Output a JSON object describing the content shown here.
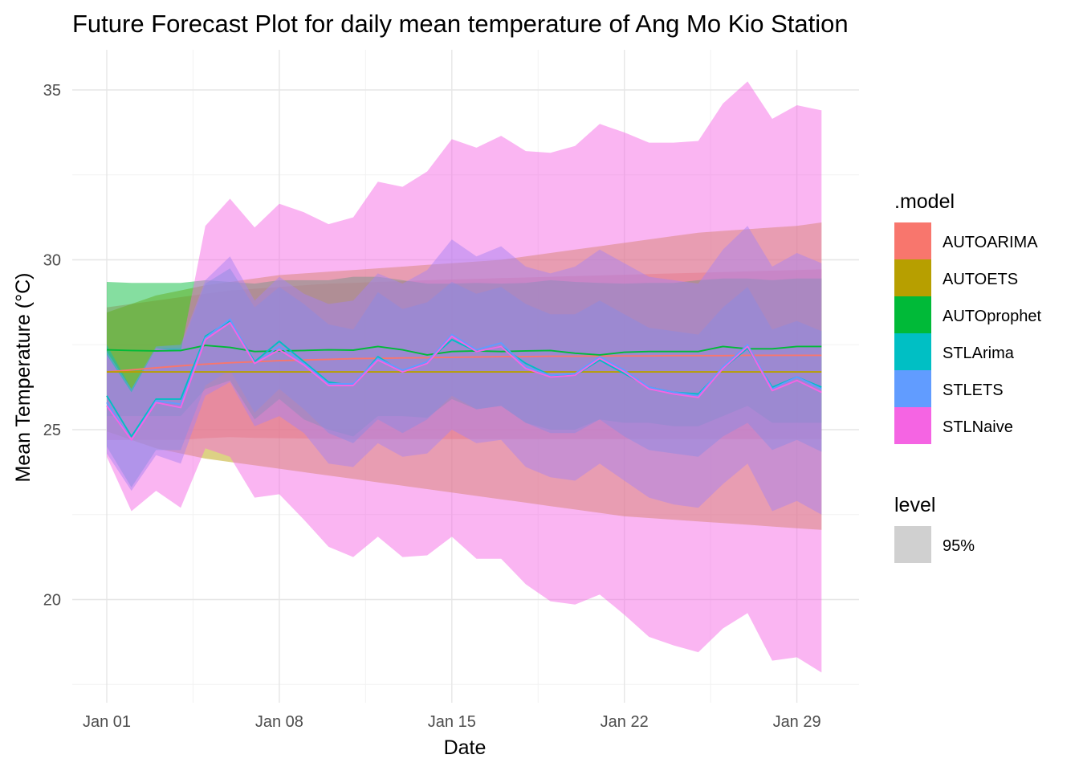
{
  "chart_data": {
    "type": "line",
    "title": "Future Forecast Plot for daily mean temperature of Ang Mo Kio Station",
    "xlabel": "Date",
    "ylabel": "Mean Temperature (°C)",
    "x": [
      "Jan 01",
      "Jan 02",
      "Jan 03",
      "Jan 04",
      "Jan 05",
      "Jan 06",
      "Jan 07",
      "Jan 08",
      "Jan 09",
      "Jan 10",
      "Jan 11",
      "Jan 12",
      "Jan 13",
      "Jan 14",
      "Jan 15",
      "Jan 16",
      "Jan 17",
      "Jan 18",
      "Jan 19",
      "Jan 20",
      "Jan 21",
      "Jan 22",
      "Jan 23",
      "Jan 24",
      "Jan 25",
      "Jan 26",
      "Jan 27",
      "Jan 28",
      "Jan 29",
      "Jan 30"
    ],
    "x_ticks": [
      "Jan 01",
      "Jan 08",
      "Jan 15",
      "Jan 22",
      "Jan 29"
    ],
    "y_ticks": [
      20,
      25,
      30,
      35
    ],
    "ylim": [
      17.5,
      36.5
    ],
    "grid": true,
    "legend_position": "right",
    "legend_model_title": ".model",
    "legend_level_title": "level",
    "level_label": "95%",
    "level_swatch_color": "#d0d0d0",
    "series": [
      {
        "name": "AUTOARIMA",
        "color": "#F8766D",
        "mean": [
          26.7,
          26.76,
          26.82,
          26.88,
          26.93,
          26.97,
          27.0,
          27.03,
          27.05,
          27.07,
          27.09,
          27.1,
          27.11,
          27.12,
          27.13,
          27.14,
          27.15,
          27.15,
          27.16,
          27.16,
          27.17,
          27.17,
          27.17,
          27.18,
          27.18,
          27.18,
          27.19,
          27.19,
          27.19,
          27.19
        ],
        "lower": [
          24.7,
          24.7,
          24.7,
          24.7,
          24.75,
          24.78,
          24.76,
          24.75,
          24.74,
          24.73,
          24.72,
          24.72,
          24.72,
          24.72,
          24.72,
          24.72,
          24.72,
          24.72,
          24.72,
          24.72,
          24.72,
          24.72,
          24.72,
          24.72,
          24.72,
          24.72,
          24.72,
          24.72,
          24.72,
          24.72
        ],
        "upper": [
          28.6,
          28.7,
          28.8,
          28.9,
          29.0,
          29.1,
          29.15,
          29.2,
          29.25,
          29.3,
          29.32,
          29.35,
          29.37,
          29.4,
          29.42,
          29.44,
          29.46,
          29.48,
          29.5,
          29.52,
          29.54,
          29.56,
          29.58,
          29.6,
          29.62,
          29.64,
          29.66,
          29.68,
          29.7,
          29.72
        ]
      },
      {
        "name": "AUTOETS",
        "color": "#B79F00",
        "mean": [
          26.7,
          26.7,
          26.7,
          26.7,
          26.7,
          26.7,
          26.7,
          26.7,
          26.7,
          26.7,
          26.7,
          26.7,
          26.7,
          26.7,
          26.7,
          26.7,
          26.7,
          26.7,
          26.7,
          26.7,
          26.7,
          26.7,
          26.7,
          26.7,
          26.7,
          26.7,
          26.7,
          26.7,
          26.7,
          26.7
        ],
        "lower": [
          24.95,
          24.7,
          24.45,
          24.3,
          24.15,
          24.05,
          23.95,
          23.85,
          23.75,
          23.65,
          23.55,
          23.45,
          23.35,
          23.25,
          23.15,
          23.05,
          22.95,
          22.85,
          22.75,
          22.65,
          22.55,
          22.45,
          22.4,
          22.35,
          22.3,
          22.25,
          22.2,
          22.15,
          22.1,
          22.05
        ],
        "upper": [
          28.45,
          28.7,
          28.95,
          29.1,
          29.25,
          29.35,
          29.45,
          29.55,
          29.6,
          29.65,
          29.7,
          29.75,
          29.8,
          29.85,
          29.9,
          29.95,
          30.0,
          30.1,
          30.2,
          30.3,
          30.4,
          30.5,
          30.6,
          30.7,
          30.8,
          30.85,
          30.9,
          30.95,
          31.0,
          31.1
        ]
      },
      {
        "name": "AUTOprophet",
        "color": "#00BA38",
        "mean": [
          27.35,
          27.33,
          27.32,
          27.33,
          27.48,
          27.42,
          27.3,
          27.32,
          27.33,
          27.35,
          27.34,
          27.45,
          27.35,
          27.2,
          27.3,
          27.32,
          27.3,
          27.32,
          27.33,
          27.25,
          27.2,
          27.28,
          27.3,
          27.3,
          27.3,
          27.45,
          27.38,
          27.38,
          27.45,
          27.45
        ],
        "lower": [
          25.4,
          25.4,
          25.4,
          25.4,
          26.2,
          26.45,
          25.3,
          25.9,
          25.3,
          25.0,
          24.8,
          25.4,
          25.4,
          25.35,
          25.9,
          25.6,
          25.7,
          25.2,
          25.0,
          25.0,
          25.3,
          25.2,
          25.2,
          25.1,
          25.1,
          25.4,
          25.7,
          25.2,
          25.2,
          25.2
        ],
        "upper": [
          29.35,
          29.32,
          29.32,
          29.32,
          29.4,
          29.35,
          29.3,
          29.4,
          29.4,
          29.4,
          29.5,
          29.5,
          29.4,
          29.3,
          29.3,
          29.32,
          29.3,
          29.32,
          29.4,
          29.35,
          29.32,
          29.3,
          29.32,
          29.32,
          29.4,
          29.45,
          29.45,
          29.4,
          29.45,
          29.45
        ]
      },
      {
        "name": "STLArima",
        "color": "#00BFC4",
        "mean": [
          26.0,
          24.8,
          25.9,
          25.9,
          27.75,
          28.2,
          27.0,
          27.6,
          27.0,
          26.4,
          26.3,
          27.15,
          26.7,
          27.0,
          27.65,
          27.3,
          27.45,
          26.95,
          26.6,
          26.6,
          27.05,
          26.65,
          26.25,
          26.1,
          26.05,
          26.8,
          27.4,
          26.25,
          26.55,
          26.25
        ],
        "lower": [
          24.5,
          23.3,
          24.4,
          24.4,
          26.3,
          26.75,
          25.5,
          26.2,
          25.6,
          24.9,
          24.6,
          25.3,
          24.9,
          25.3,
          26.0,
          25.6,
          25.7,
          25.2,
          24.9,
          24.9,
          25.3,
          24.8,
          24.4,
          24.3,
          24.2,
          24.8,
          25.2,
          24.4,
          24.7,
          24.35
        ],
        "upper": [
          27.5,
          26.2,
          27.4,
          27.4,
          29.3,
          29.75,
          28.6,
          29.2,
          28.7,
          28.1,
          27.95,
          29.05,
          28.55,
          28.75,
          29.35,
          29.0,
          29.2,
          28.7,
          28.4,
          28.4,
          28.8,
          28.4,
          28.0,
          27.9,
          27.8,
          28.6,
          29.2,
          27.95,
          28.2,
          27.9
        ]
      },
      {
        "name": "STLETS",
        "color": "#619CFF",
        "mean": [
          25.8,
          24.7,
          25.85,
          25.75,
          27.7,
          28.25,
          26.95,
          27.45,
          26.95,
          26.35,
          26.35,
          27.1,
          26.75,
          27.0,
          27.8,
          27.35,
          27.55,
          26.85,
          26.6,
          26.65,
          27.15,
          26.75,
          26.25,
          26.1,
          26.0,
          26.85,
          27.5,
          26.2,
          26.55,
          26.2
        ],
        "lower": [
          24.3,
          23.2,
          24.25,
          24.0,
          26.0,
          26.4,
          25.1,
          25.4,
          24.9,
          24.0,
          23.9,
          24.6,
          24.2,
          24.3,
          25.0,
          24.6,
          24.7,
          23.9,
          23.6,
          23.5,
          24.0,
          23.5,
          23.0,
          22.8,
          22.7,
          23.4,
          24.0,
          22.6,
          22.9,
          22.5
        ],
        "upper": [
          27.3,
          26.2,
          27.45,
          27.5,
          29.4,
          30.1,
          28.8,
          29.5,
          29.0,
          28.7,
          28.8,
          29.6,
          29.3,
          29.7,
          30.6,
          30.1,
          30.4,
          29.8,
          29.6,
          29.8,
          30.3,
          29.9,
          29.5,
          29.4,
          29.3,
          30.3,
          31.0,
          29.8,
          30.2,
          29.9
        ]
      },
      {
        "name": "STLNaive",
        "color": "#F564E3",
        "mean": [
          25.7,
          24.7,
          25.8,
          25.65,
          27.65,
          28.15,
          26.95,
          27.35,
          26.9,
          26.3,
          26.3,
          27.05,
          26.7,
          26.95,
          27.75,
          27.3,
          27.45,
          26.8,
          26.55,
          26.6,
          27.1,
          26.7,
          26.2,
          26.05,
          25.95,
          26.8,
          27.45,
          26.15,
          26.45,
          26.1
        ],
        "lower": [
          24.2,
          22.6,
          23.2,
          22.7,
          24.45,
          24.2,
          23.0,
          23.1,
          22.35,
          21.55,
          21.25,
          21.85,
          21.25,
          21.3,
          21.85,
          21.2,
          21.2,
          20.45,
          19.95,
          19.85,
          20.15,
          19.55,
          18.9,
          18.65,
          18.45,
          19.15,
          19.6,
          18.2,
          18.3,
          17.85
        ],
        "upper": [
          27.2,
          26.1,
          27.4,
          27.3,
          31.0,
          31.8,
          30.95,
          31.65,
          31.4,
          31.05,
          31.25,
          32.3,
          32.15,
          32.6,
          33.55,
          33.3,
          33.65,
          33.2,
          33.15,
          33.35,
          34.0,
          33.75,
          33.45,
          33.45,
          33.5,
          34.6,
          35.25,
          34.15,
          34.55,
          34.4
        ]
      }
    ]
  }
}
